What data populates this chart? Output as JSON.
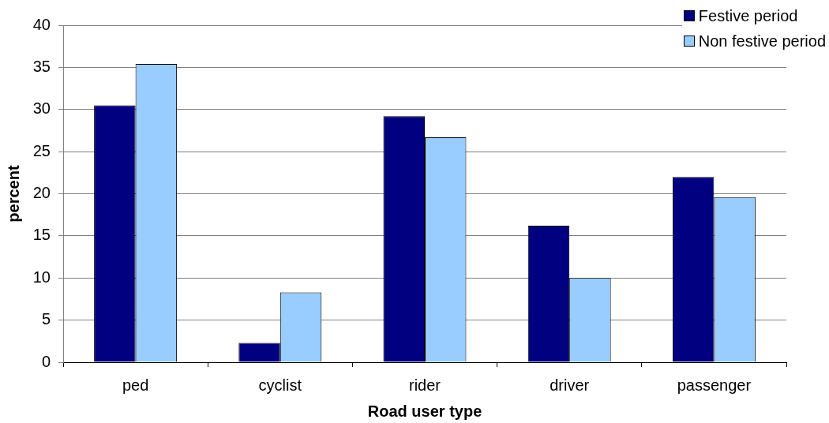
{
  "chart_data": {
    "type": "bar",
    "xlabel": "Road user type",
    "ylabel": "percent",
    "categories": [
      "ped",
      "cyclist",
      "rider",
      "driver",
      "passenger"
    ],
    "series": [
      {
        "name": "Festive period",
        "color": "#000080",
        "values": [
          30.5,
          2.3,
          29.2,
          16.2,
          22.0
        ]
      },
      {
        "name": "Non festive period",
        "color": "#99ccff",
        "values": [
          35.4,
          8.3,
          26.7,
          10.0,
          19.6
        ]
      }
    ],
    "ylim": [
      0,
      40
    ],
    "yticks": [
      0,
      5,
      10,
      15,
      20,
      25,
      30,
      35,
      40
    ],
    "grid": "y",
    "legend": "top right"
  }
}
